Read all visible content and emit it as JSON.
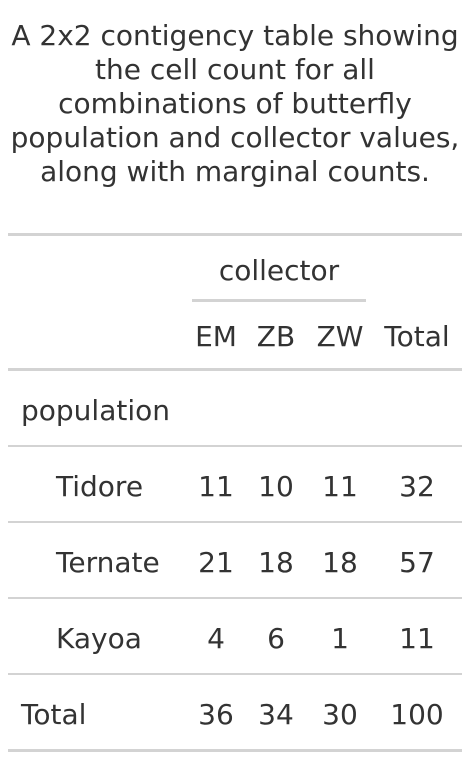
{
  "caption_lines": [
    "A 2x2 contigency table showing",
    "the cell count for all",
    "combinations of butterfly",
    "population and collector values,",
    "along with marginal counts."
  ],
  "spanner": "collector",
  "columns": [
    "EM",
    "ZB",
    "ZW",
    "Total"
  ],
  "row_group": "population",
  "rows": [
    {
      "label": "Tidore",
      "values": [
        "11",
        "10",
        "11",
        "32"
      ]
    },
    {
      "label": "Ternate",
      "values": [
        "21",
        "18",
        "18",
        "57"
      ]
    },
    {
      "label": "Kayoa",
      "values": [
        "4",
        "6",
        "1",
        "11"
      ]
    }
  ],
  "total_row": {
    "label": "Total",
    "values": [
      "36",
      "34",
      "30",
      "100"
    ]
  }
}
